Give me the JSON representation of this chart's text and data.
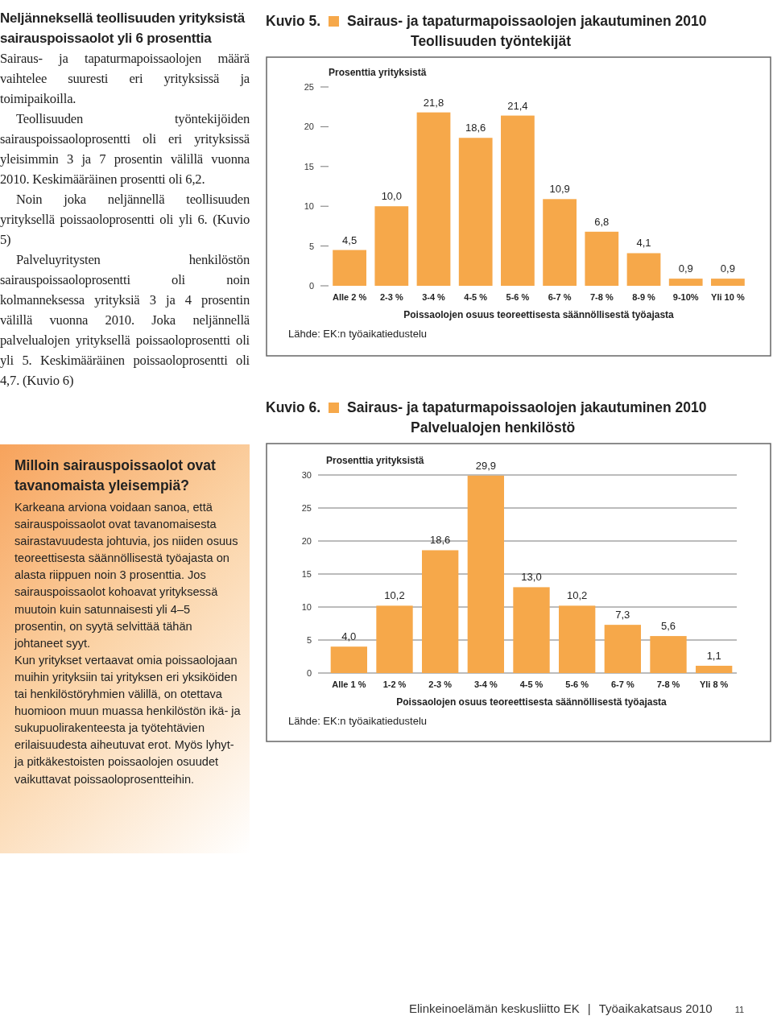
{
  "chart_data": [
    {
      "type": "other",
      "title": "Neljänneksellä teollisuuden yrityksistä sairauspoissaolot yli 6 prosenttia",
      "annotations": [
        "Sairaus- ja tapaturmapoissaolojen määrä vaihtelee suuresti eri yrityksissä ja toimipaikoilla.",
        "Teollisuuden työntekijöiden sairauspoissaoloprosentti oli eri yrityksissä yleisimmin 3 ja 7 prosentin välillä vuonna 2010. Keskimääräinen prosentti oli 6,2.",
        "Noin joka neljännellä teollisuuden yrityksellä poissaoloprosentti oli yli 6. (Kuvio 5)",
        "Palveluyritysten henkilöstön sairauspoissaoloprosentti oli noin kolmanneksessa yrityksiä 3 ja 4 prosentin välillä vuonna 2010. Joka neljännellä palvelualojen yrityksellä poissaoloprosentti oli yli 5. Keskimääräinen poissaoloprosentti oli 4,7. (Kuvio 6)"
      ]
    },
    {
      "type": "bar",
      "title": "Sairaus- ja tapaturmapoissaolojen jakautuminen 2010",
      "subtitle": "Teollisuuden työntekijät",
      "ylabel": "Prosenttia yrityksistä",
      "xlabel": "Poissaolojen osuus teoreettisesta säännöllisestä työajasta",
      "annotations": [
        "Kuvio 5.",
        "Lähde: EK:n työaikatiedustelu"
      ],
      "categories": [
        "Alle 2 %",
        "2-3 %",
        "3-4 %",
        "4-5 %",
        "5-6 %",
        "6-7 %",
        "7-8 %",
        "8-9 %",
        "9-10%",
        "Yli 10 %"
      ],
      "values": [
        4.5,
        10.0,
        21.8,
        18.6,
        21.4,
        10.9,
        6.8,
        4.1,
        0.9,
        0.9
      ],
      "value_labels": [
        "4,5",
        "10,0",
        "21,8",
        "18,6",
        "21,4",
        "10,9",
        "6,8",
        "4,1",
        "0,9",
        "0,9"
      ],
      "color": "#f6a84a",
      "ylim": [
        0,
        25
      ],
      "yticks": [
        0,
        5,
        10,
        15,
        20,
        25
      ],
      "grid": false
    },
    {
      "type": "bar",
      "title": "Sairaus- ja tapaturmapoissaolojen jakautuminen 2010",
      "subtitle": "Palvelualojen henkilöstö",
      "ylabel": "Prosenttia yrityksistä",
      "xlabel": "Poissaolojen osuus teoreettisesta säännöllisestä työajasta",
      "annotations": [
        "Kuvio 6.",
        "Lähde: EK:n työaikatiedustelu"
      ],
      "categories": [
        "Alle 1 %",
        "1-2 %",
        "2-3 %",
        "3-4 %",
        "4-5 %",
        "5-6 %",
        "6-7 %",
        "7-8 %",
        "Yli 8 %"
      ],
      "values": [
        4.0,
        10.2,
        18.6,
        29.9,
        13.0,
        10.2,
        7.3,
        5.6,
        1.1
      ],
      "value_labels": [
        "4,0",
        "10,2",
        "18,6",
        "29,9",
        "13,0",
        "10,2",
        "7,3",
        "5,6",
        "1,1"
      ],
      "color": "#f6a84a",
      "ylim": [
        0,
        30
      ],
      "yticks": [
        0,
        5,
        10,
        15,
        20,
        25,
        30
      ],
      "grid": "y"
    },
    {
      "type": "other",
      "title": "Milloin sairauspoissaolot ovat tavanomaista yleisempiä?",
      "annotations": [
        "Karkeana arviona voidaan sanoa, että sairauspoissaolot ovat tavanomaisesta sairastavuudesta johtuvia, jos niiden osuus teoreettisesta säännöllisestä työajasta on alasta riippuen noin 3 prosenttia. Jos sairauspoissaolot kohoavat yrityksessä muutoin kuin satunnaisesti yli 4–5 prosentin, on syytä selvittää tähän johtaneet syyt.",
        "Kun yritykset vertaavat omia poissaolojaan muihin yrityksiin tai yrityksen eri yksiköiden tai henkilöstöryhmien välillä, on otettava huomioon muun muassa henkilöstön ikä- ja sukupuolirakenteesta ja työtehtävien erilaisuudesta aiheutuvat erot. Myös lyhyt- ja pitkäkestoisten poissaolojen osuudet vaikuttavat poissaoloprosentteihin."
      ]
    },
    {
      "type": "other",
      "annotations": [
        "Elinkeinoelämän keskusliitto EK",
        "|",
        "Työaikakatsaus 2010",
        "11"
      ]
    }
  ]
}
